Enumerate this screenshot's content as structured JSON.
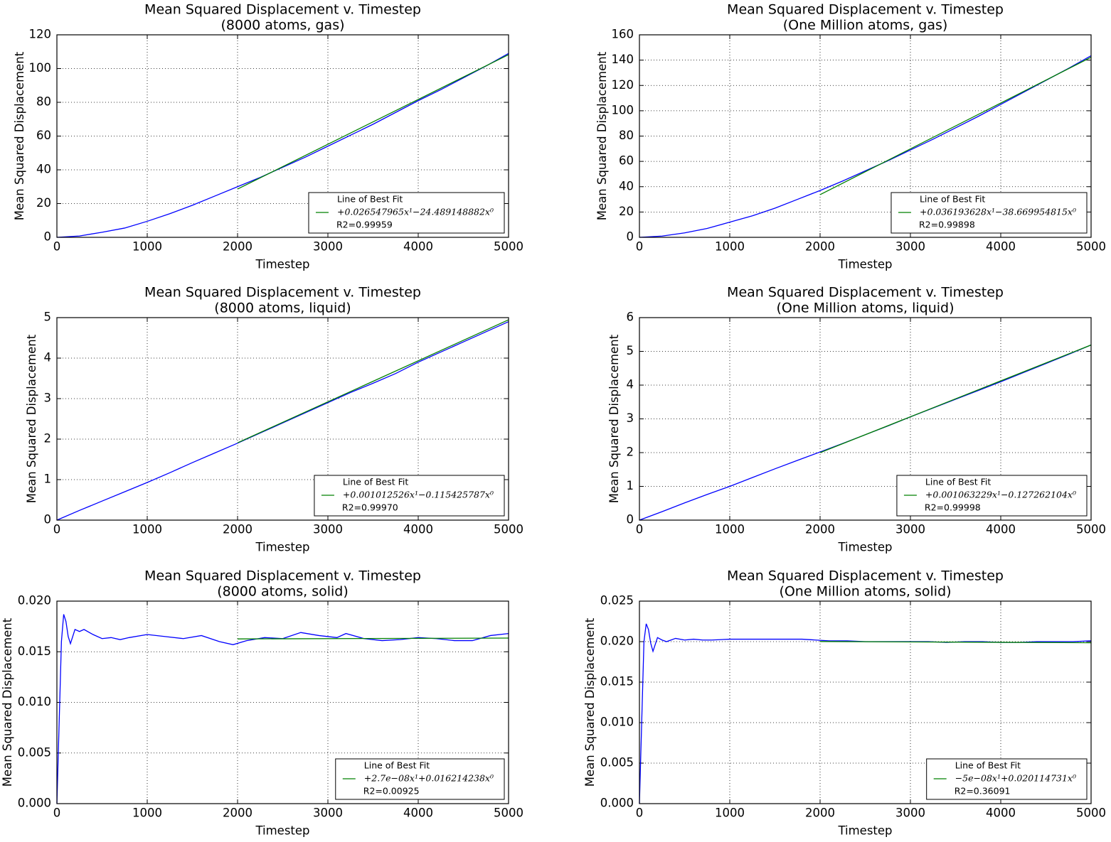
{
  "chart_data": [
    {
      "type": "line",
      "title": "Mean Squared Displacement v. Timestep",
      "subtitle": "(8000 atoms, gas)",
      "x_label": "Timestep",
      "y_label": "Mean Squared Displacement",
      "xlim": [
        0,
        5000
      ],
      "xticks": [
        0,
        1000,
        2000,
        3000,
        4000,
        5000
      ],
      "ylim": [
        0,
        120
      ],
      "yticks": [
        0,
        20,
        40,
        60,
        80,
        100,
        120
      ],
      "grid": true,
      "legend": "lower right",
      "legend_title": "Line of Best Fit",
      "legend_note": "R2=0.99959",
      "series": [
        {
          "color": "#0000ff",
          "x": [
            0,
            250,
            500,
            750,
            1000,
            1250,
            1500,
            1750,
            2000,
            2250,
            2500,
            2750,
            3000,
            3250,
            3500,
            3750,
            4000,
            4250,
            4500,
            4750,
            5000
          ],
          "values": [
            0,
            0.8,
            3,
            5.5,
            9.5,
            14,
            19,
            24.5,
            30,
            35.5,
            41.5,
            47.5,
            54,
            60.5,
            67,
            74,
            81,
            87.5,
            94.5,
            101.5,
            109
          ]
        },
        {
          "name": "+0.026547965x¹−24.489148882x⁰",
          "color": "#008000",
          "x": [
            2000,
            5000
          ],
          "values": [
            28.6,
            108.25
          ]
        }
      ]
    },
    {
      "type": "line",
      "title": "Mean Squared Displacement v. Timestep",
      "subtitle": "(One Million atoms, gas)",
      "x_label": "Timestep",
      "y_label": "Mean Squared Displacement",
      "xlim": [
        0,
        5000
      ],
      "xticks": [
        0,
        1000,
        2000,
        3000,
        4000,
        5000
      ],
      "ylim": [
        0,
        160
      ],
      "yticks": [
        0,
        20,
        40,
        60,
        80,
        100,
        120,
        140,
        160
      ],
      "grid": true,
      "legend": "lower right",
      "legend_title": "Line of Best Fit",
      "legend_note": "R2=0.99898",
      "series": [
        {
          "color": "#0000ff",
          "x": [
            0,
            250,
            500,
            750,
            1000,
            1250,
            1500,
            1750,
            2000,
            2250,
            2500,
            2750,
            3000,
            3250,
            3500,
            3750,
            4000,
            4250,
            4500,
            4750,
            5000
          ],
          "values": [
            0,
            1,
            3.5,
            7,
            12,
            17,
            23,
            30,
            37,
            44.5,
            52.5,
            60.5,
            69,
            77.5,
            86.5,
            95.5,
            105,
            114.5,
            124,
            133.5,
            143.5
          ]
        },
        {
          "name": "+0.036193628x¹−38.669954815x⁰",
          "color": "#008000",
          "x": [
            2000,
            5000
          ],
          "values": [
            33.7,
            142.3
          ]
        }
      ]
    },
    {
      "type": "line",
      "title": "Mean Squared Displacement v. Timestep",
      "subtitle": "(8000 atoms, liquid)",
      "x_label": "Timestep",
      "y_label": "Mean Squared Displacement",
      "xlim": [
        0,
        5000
      ],
      "xticks": [
        0,
        1000,
        2000,
        3000,
        4000,
        5000
      ],
      "ylim": [
        0,
        5
      ],
      "yticks": [
        0,
        1,
        2,
        3,
        4,
        5
      ],
      "grid": true,
      "legend": "lower right",
      "legend_title": "Line of Best Fit",
      "legend_note": "R2=0.99970",
      "series": [
        {
          "color": "#0000ff",
          "x": [
            0,
            250,
            500,
            750,
            1000,
            1250,
            1500,
            1750,
            2000,
            2250,
            2500,
            2750,
            3000,
            3250,
            3500,
            3750,
            4000,
            4250,
            4500,
            4750,
            5000
          ],
          "values": [
            0,
            0.24,
            0.47,
            0.7,
            0.93,
            1.17,
            1.42,
            1.66,
            1.9,
            2.15,
            2.4,
            2.65,
            2.9,
            3.15,
            3.38,
            3.62,
            3.9,
            4.15,
            4.4,
            4.65,
            4.9
          ]
        },
        {
          "name": "+0.001012526x¹−0.115425787x⁰",
          "color": "#008000",
          "x": [
            2000,
            5000
          ],
          "values": [
            1.909,
            4.9465
          ]
        }
      ]
    },
    {
      "type": "line",
      "title": "Mean Squared Displacement v. Timestep",
      "subtitle": "(One Million atoms, liquid)",
      "x_label": "Timestep",
      "y_label": "Mean Squared Displacement",
      "xlim": [
        0,
        5000
      ],
      "xticks": [
        0,
        1000,
        2000,
        3000,
        4000,
        5000
      ],
      "ylim": [
        0,
        6
      ],
      "yticks": [
        0,
        1,
        2,
        3,
        4,
        5,
        6
      ],
      "grid": true,
      "legend": "lower right",
      "legend_title": "Line of Best Fit",
      "legend_note": "R2=0.99998",
      "series": [
        {
          "color": "#0000ff",
          "x": [
            0,
            250,
            500,
            750,
            1000,
            1250,
            1500,
            1750,
            2000,
            2250,
            2500,
            2750,
            3000,
            3250,
            3500,
            3750,
            4000,
            4250,
            4500,
            4750,
            5000
          ],
          "values": [
            0,
            0.25,
            0.51,
            0.76,
            1.0,
            1.26,
            1.52,
            1.77,
            2.02,
            2.27,
            2.53,
            2.79,
            3.06,
            3.32,
            3.58,
            3.84,
            4.1,
            4.37,
            4.64,
            4.91,
            5.19
          ]
        },
        {
          "name": "+0.001063229x¹−0.127262104x⁰",
          "color": "#008000",
          "x": [
            2000,
            5000
          ],
          "values": [
            1.999,
            5.189
          ]
        }
      ]
    },
    {
      "type": "line",
      "title": "Mean Squared Displacement v. Timestep",
      "subtitle": "(8000 atoms, solid)",
      "x_label": "Timestep",
      "y_label": "Mean Squared Displacement",
      "xlim": [
        0,
        5000
      ],
      "xticks": [
        0,
        1000,
        2000,
        3000,
        4000,
        5000
      ],
      "ylim": [
        0,
        0.02
      ],
      "yticks": [
        {
          "value": 0,
          "label": "0.000"
        },
        {
          "value": 0.005,
          "label": "0.005"
        },
        {
          "value": 0.01,
          "label": "0.010"
        },
        {
          "value": 0.015,
          "label": "0.015"
        },
        {
          "value": 0.02,
          "label": "0.020"
        }
      ],
      "grid": true,
      "legend": "lower right",
      "legend_title": "Line of Best Fit",
      "legend_note": "R2=0.00925",
      "series": [
        {
          "color": "#0000ff",
          "x": [
            0,
            25,
            50,
            75,
            100,
            125,
            150,
            200,
            250,
            300,
            400,
            500,
            600,
            700,
            800,
            1000,
            1200,
            1400,
            1600,
            1800,
            1950,
            2100,
            2300,
            2500,
            2700,
            2900,
            3100,
            3200,
            3400,
            3600,
            3800,
            4000,
            4200,
            4400,
            4600,
            4800,
            5000
          ],
          "values": [
            0,
            0.008,
            0.016,
            0.0187,
            0.018,
            0.0165,
            0.0158,
            0.0172,
            0.017,
            0.0172,
            0.0167,
            0.0163,
            0.0164,
            0.0162,
            0.0164,
            0.0167,
            0.0165,
            0.0163,
            0.0166,
            0.016,
            0.0157,
            0.0161,
            0.0164,
            0.0163,
            0.0169,
            0.0166,
            0.0164,
            0.0168,
            0.0163,
            0.0161,
            0.0162,
            0.0164,
            0.0163,
            0.0161,
            0.0161,
            0.0166,
            0.0168
          ]
        },
        {
          "name": "+2.7e−08x¹+0.016214238x⁰",
          "color": "#008000",
          "x": [
            2000,
            5000
          ],
          "values": [
            0.016268,
            0.016349
          ]
        }
      ]
    },
    {
      "type": "line",
      "title": "Mean Squared Displacement v. Timestep",
      "subtitle": "(One Million atoms, solid)",
      "x_label": "Timestep",
      "y_label": "Mean Squared Displacement",
      "xlim": [
        0,
        5000
      ],
      "xticks": [
        0,
        1000,
        2000,
        3000,
        4000,
        5000
      ],
      "ylim": [
        0,
        0.025
      ],
      "yticks": [
        {
          "value": 0,
          "label": "0.000"
        },
        {
          "value": 0.005,
          "label": "0.005"
        },
        {
          "value": 0.01,
          "label": "0.010"
        },
        {
          "value": 0.015,
          "label": "0.015"
        },
        {
          "value": 0.02,
          "label": "0.020"
        },
        {
          "value": 0.025,
          "label": "0.025"
        }
      ],
      "grid": true,
      "legend": "lower right",
      "legend_title": "Line of Best Fit",
      "legend_note": "R2=0.36091",
      "series": [
        {
          "color": "#0000ff",
          "x": [
            0,
            25,
            50,
            75,
            100,
            125,
            150,
            200,
            250,
            300,
            400,
            500,
            600,
            700,
            800,
            1000,
            1200,
            1400,
            1600,
            1800,
            1950,
            2100,
            2300,
            2500,
            2700,
            2900,
            3100,
            3200,
            3400,
            3600,
            3800,
            4000,
            4200,
            4400,
            4600,
            4800,
            5000
          ],
          "values": [
            0,
            0.01,
            0.02,
            0.0222,
            0.0215,
            0.0198,
            0.0188,
            0.0205,
            0.0202,
            0.02,
            0.0204,
            0.0202,
            0.0203,
            0.0202,
            0.0202,
            0.0203,
            0.0203,
            0.0203,
            0.0203,
            0.0203,
            0.0202,
            0.0201,
            0.0201,
            0.02,
            0.02,
            0.02,
            0.02,
            0.02,
            0.0199,
            0.02,
            0.02,
            0.0199,
            0.0199,
            0.02,
            0.02,
            0.02,
            0.0201
          ]
        },
        {
          "name": "−5e−08x¹+0.020114731x⁰",
          "color": "#008000",
          "x": [
            2000,
            5000
          ],
          "values": [
            0.020015,
            0.019865
          ]
        }
      ]
    }
  ]
}
